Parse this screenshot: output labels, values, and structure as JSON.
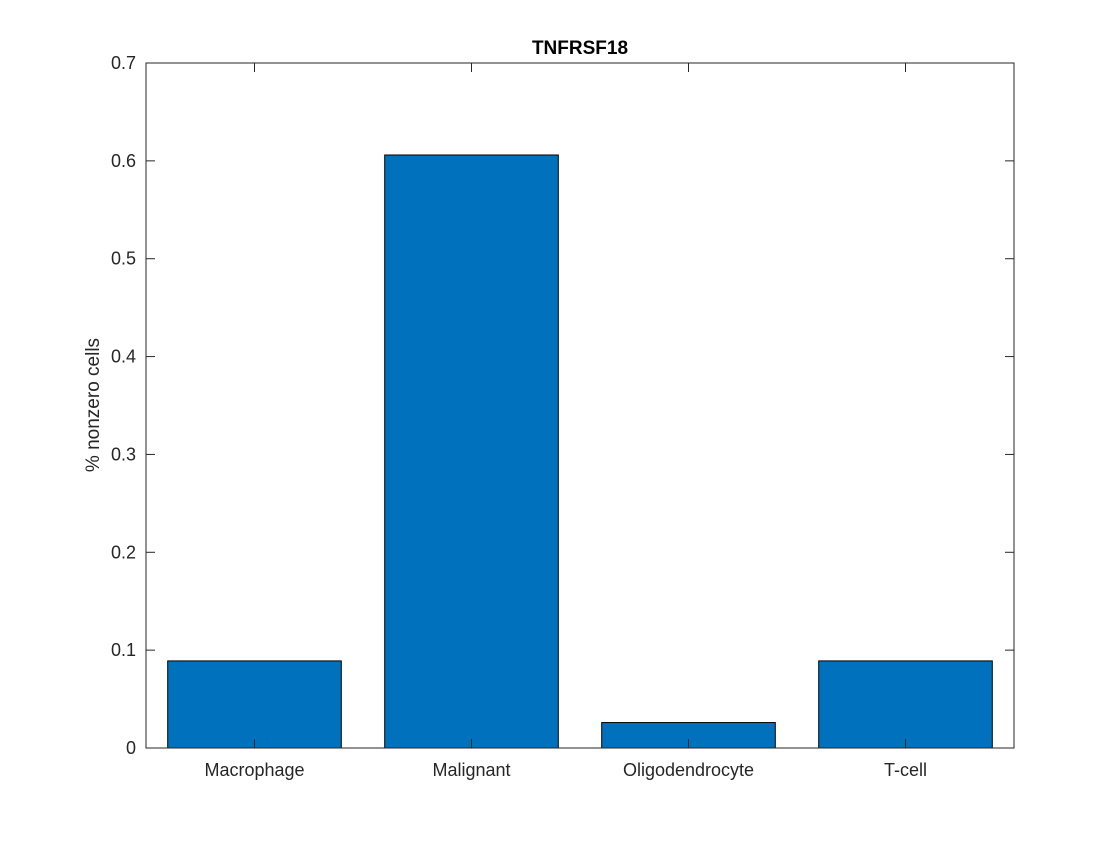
{
  "chart_data": {
    "type": "bar",
    "title": "TNFRSF18",
    "xlabel": "",
    "ylabel": "% nonzero cells",
    "categories": [
      "Macrophage",
      "Malignant",
      "Oligodendrocyte",
      "T-cell"
    ],
    "values": [
      0.089,
      0.606,
      0.026,
      0.089
    ],
    "ylim": [
      0,
      0.7
    ],
    "yticks": [
      "0",
      "0.1",
      "0.2",
      "0.3",
      "0.4",
      "0.5",
      "0.6",
      "0.7"
    ],
    "grid": false,
    "legend": "none",
    "bar_color": "#0072BD",
    "bar_edge_color": "#000000",
    "axis_color": "#262626"
  }
}
